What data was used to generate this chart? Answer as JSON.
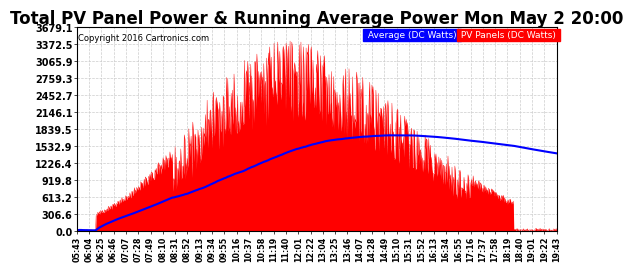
{
  "title": "Total PV Panel Power & Running Average Power Mon May 2 20:00",
  "copyright": "Copyright 2016 Cartronics.com",
  "legend_avg": "Average (DC Watts)",
  "legend_pv": "PV Panels (DC Watts)",
  "ymax": 3679.1,
  "yticks": [
    0.0,
    306.6,
    613.2,
    919.8,
    1226.4,
    1532.9,
    1839.5,
    2146.1,
    2452.7,
    2759.3,
    3065.9,
    3372.5,
    3679.1
  ],
  "pv_color": "red",
  "avg_color": "blue",
  "bg_color": "white",
  "grid_color": "#cccccc",
  "title_fontsize": 12,
  "xtick_labels": [
    "05:43",
    "06:04",
    "06:25",
    "06:46",
    "07:07",
    "07:28",
    "07:49",
    "08:10",
    "08:31",
    "08:52",
    "09:13",
    "09:34",
    "09:55",
    "10:16",
    "10:37",
    "10:58",
    "11:19",
    "11:40",
    "12:01",
    "12:22",
    "13:04",
    "13:25",
    "13:46",
    "14:07",
    "14:28",
    "14:49",
    "15:10",
    "15:31",
    "15:52",
    "16:13",
    "16:34",
    "16:55",
    "17:16",
    "17:37",
    "17:58",
    "18:19",
    "18:40",
    "19:01",
    "19:22",
    "19:43"
  ]
}
